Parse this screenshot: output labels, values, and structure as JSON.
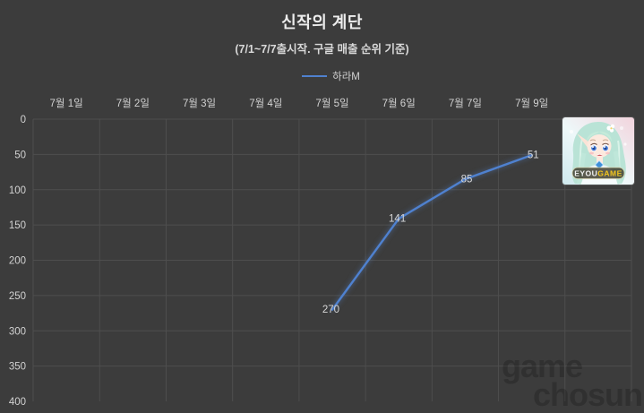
{
  "title": "신작의 계단",
  "subtitle": "(7/1~7/7출시작. 구글 매출 순위 기준)",
  "legend": {
    "items": [
      {
        "label": "하라M",
        "color": "#4f81cf"
      }
    ]
  },
  "chart_data": {
    "type": "line",
    "title": "신작의 계단",
    "subtitle": "(7/1~7/7출시작. 구글 매출 순위 기준)",
    "categories": [
      "7월 1일",
      "7월 2일",
      "7월 3일",
      "7월 4일",
      "7월 5일",
      "7월 6일",
      "7월 7일",
      "7월 9일"
    ],
    "n_columns": 9,
    "series": [
      {
        "name": "하라M",
        "color": "#4f81cf",
        "points": [
          {
            "category": "7월 5일",
            "value": 270
          },
          {
            "category": "7월 6일",
            "value": 141
          },
          {
            "category": "7월 7일",
            "value": 85
          },
          {
            "category": "7월 9일",
            "value": 51
          }
        ]
      }
    ],
    "yticks": [
      0,
      50,
      100,
      150,
      200,
      250,
      300,
      350,
      400
    ],
    "ylim": [
      0,
      400
    ],
    "y_axis_inverted": true,
    "grid": true,
    "legend_position": "top-center",
    "x_labels_position": "top"
  },
  "overlay": {
    "badge_text_white": "EYOU",
    "badge_text_yellow": "GAME"
  },
  "watermark": {
    "line1": "game",
    "line2": "chosun"
  },
  "colors": {
    "background": "#3c3c3c",
    "grid": "#4e4e4e",
    "axis_text": "#d2d2d2",
    "data_label": "#d8d8d8",
    "title_text": "#ededed",
    "series_line": "#4f81cf"
  }
}
